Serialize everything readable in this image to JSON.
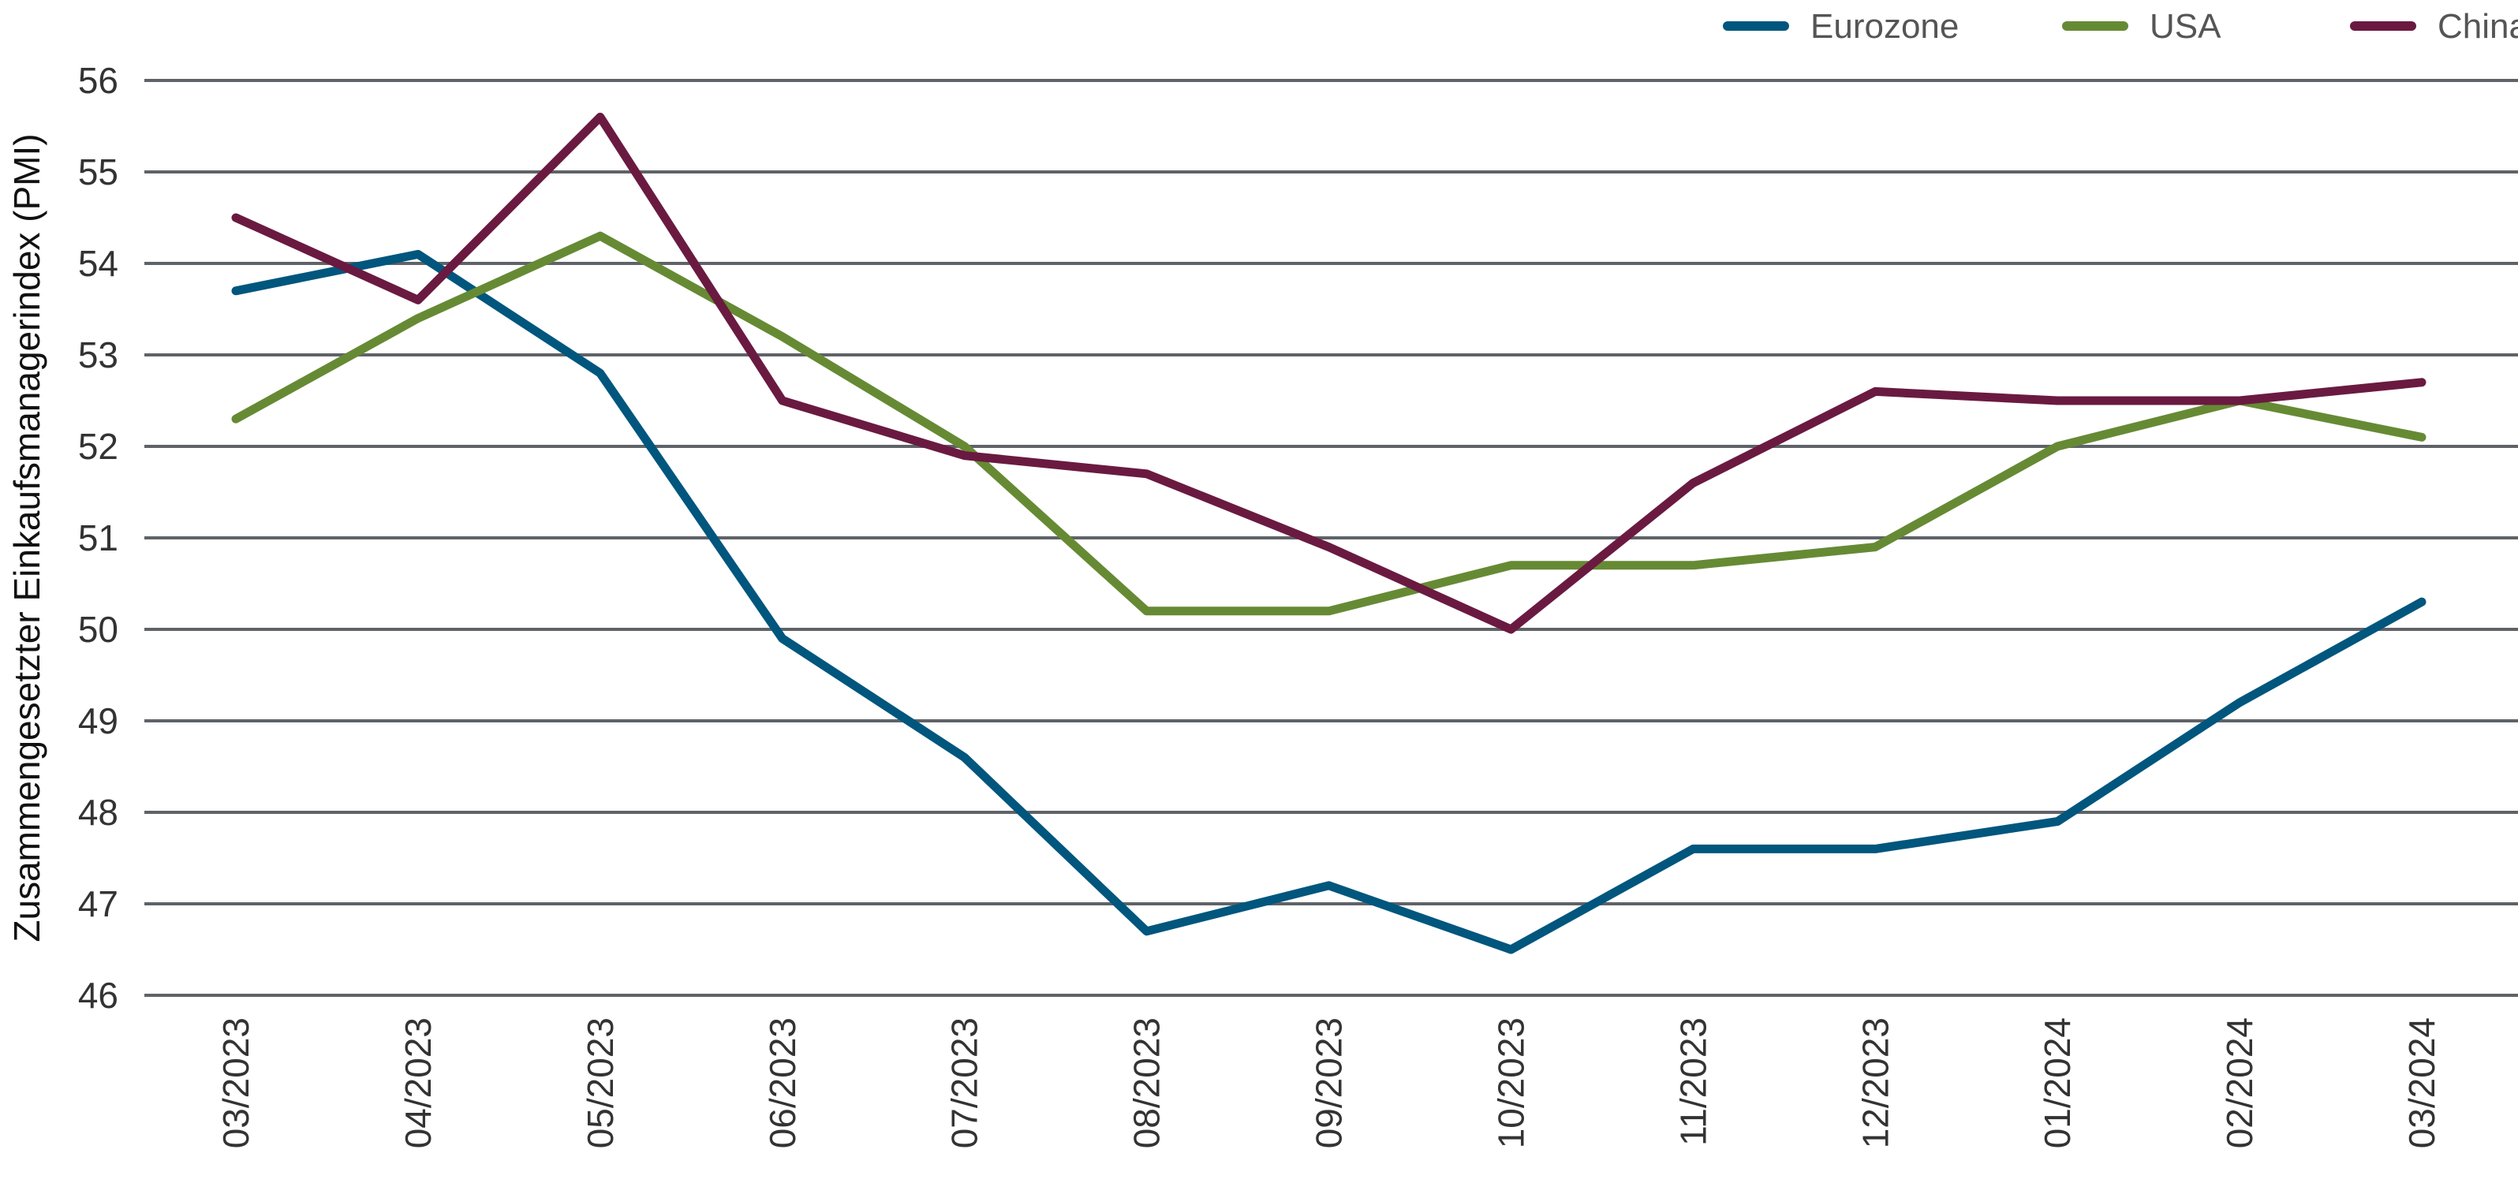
{
  "chart_data": {
    "type": "line",
    "title": "",
    "xlabel": "",
    "ylabel": "Zusammengesetzter Einkaufsmanagerindex (PMI)",
    "ylim": [
      46,
      56
    ],
    "yticks": [
      46,
      47,
      48,
      49,
      50,
      51,
      52,
      53,
      54,
      55,
      56
    ],
    "grid": true,
    "legend_position": "top-right",
    "categories": [
      "03/2023",
      "04/2023",
      "05/2023",
      "06/2023",
      "07/2023",
      "08/2023",
      "09/2023",
      "10/2023",
      "11/2023",
      "12/2023",
      "01/2024",
      "02/2024",
      "03/2024"
    ],
    "series": [
      {
        "name": "Eurozone",
        "color": "#00567d",
        "values": [
          53.7,
          54.1,
          52.8,
          49.9,
          48.6,
          46.7,
          47.2,
          46.5,
          47.6,
          47.6,
          47.9,
          49.2,
          50.3
        ]
      },
      {
        "name": "USA",
        "color": "#668a34",
        "values": [
          52.3,
          53.4,
          54.3,
          53.2,
          52.0,
          50.2,
          50.2,
          50.7,
          50.7,
          50.9,
          52.0,
          52.5,
          52.1
        ]
      },
      {
        "name": "China",
        "color": "#6a1a40",
        "values": [
          54.5,
          53.6,
          55.6,
          52.5,
          51.9,
          51.7,
          50.9,
          50.0,
          51.6,
          52.6,
          52.5,
          52.5,
          52.7
        ]
      }
    ]
  }
}
